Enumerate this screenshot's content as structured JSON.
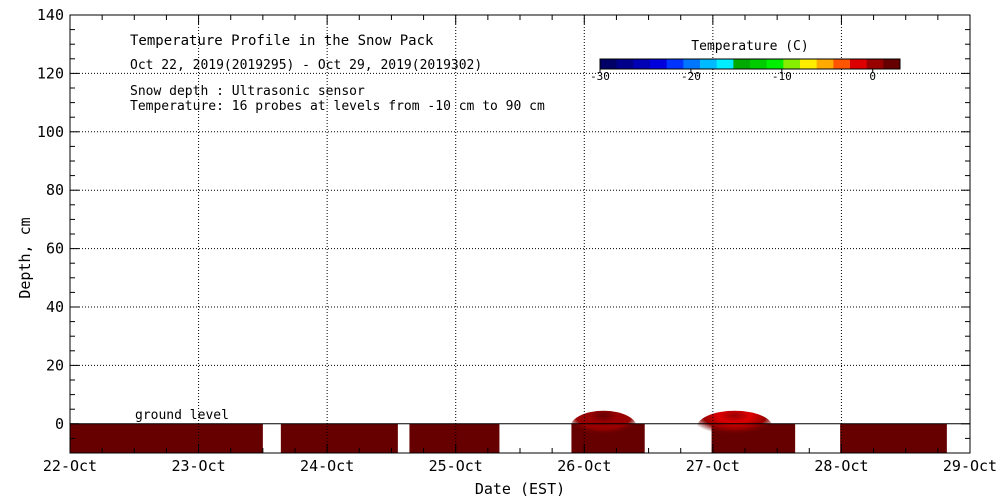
{
  "chart_data": {
    "type": "heatmap",
    "title": "Temperature Profile in the Snow Pack",
    "subtitle": "Oct 22, 2019(2019295) - Oct 29, 2019(2019302)",
    "notes": [
      "Snow depth : Ultrasonic sensor",
      "Temperature: 16 probes at levels from -10 cm to 90 cm"
    ],
    "xlabel": "Date (EST)",
    "ylabel": "Depth, cm",
    "x_ticks": [
      "22-Oct",
      "23-Oct",
      "24-Oct",
      "25-Oct",
      "26-Oct",
      "27-Oct",
      "28-Oct",
      "29-Oct"
    ],
    "xlim": [
      0,
      7
    ],
    "ylim": [
      -10,
      140
    ],
    "y_ticks": [
      0,
      20,
      40,
      60,
      80,
      100,
      120,
      140
    ],
    "grid": true,
    "ground_label": "ground level",
    "colorbar": {
      "title": "Temperature (C)",
      "tick_labels": [
        "-30",
        "-20",
        "-10",
        "0"
      ],
      "range": [
        -30,
        3
      ],
      "colors": [
        "#000066",
        "#00008a",
        "#0000b4",
        "#0000dc",
        "#0033ff",
        "#0077ff",
        "#00bbff",
        "#00eeff",
        "#00aa00",
        "#00cc00",
        "#00ee00",
        "#88ee00",
        "#ffee00",
        "#ffaa00",
        "#ff5500",
        "#dd0000",
        "#990000",
        "#660000"
      ]
    },
    "below_ground_segments": [
      {
        "start": 0.0,
        "end": 1.5,
        "temperature": 3
      },
      {
        "start": 1.64,
        "end": 2.55,
        "temperature": 3
      },
      {
        "start": 2.64,
        "end": 3.34,
        "temperature": 3
      },
      {
        "start": 3.9,
        "end": 4.47,
        "temperature": 3,
        "warm_spot": {
          "center": 4.15,
          "temperature": 0
        }
      },
      {
        "start": 4.99,
        "end": 5.64,
        "temperature": 3,
        "warm_spot": {
          "center": 5.17,
          "temperature": -2
        }
      },
      {
        "start": 5.99,
        "end": 6.82,
        "temperature": 3
      }
    ]
  }
}
